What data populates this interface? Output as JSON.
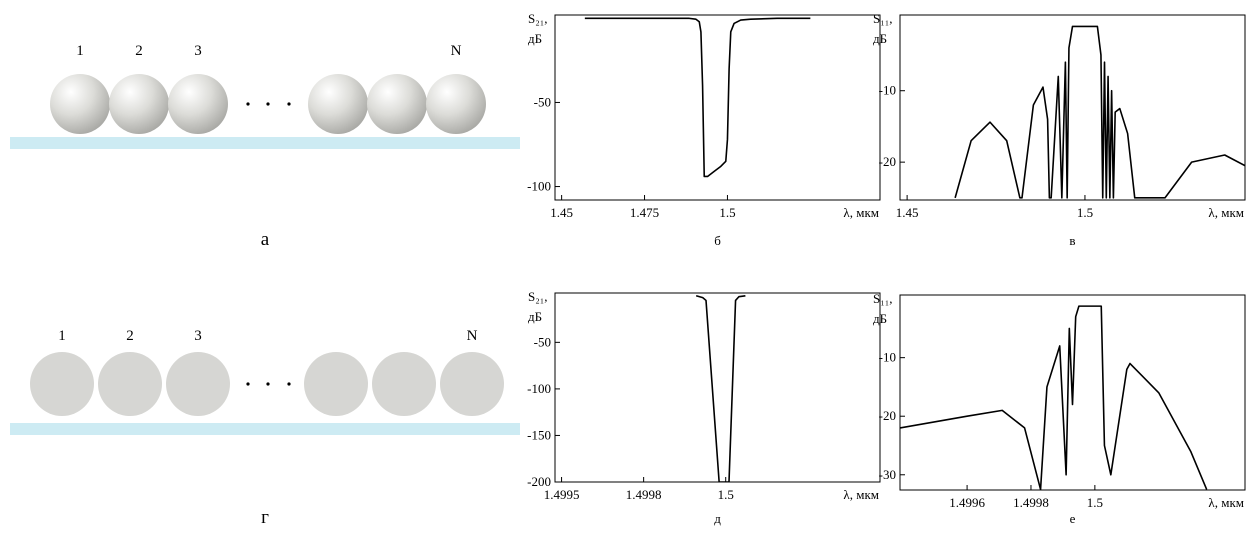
{
  "diagrams": [
    {
      "labels": [
        "1",
        "2",
        "3",
        "N"
      ],
      "caption": "а"
    },
    {
      "labels": [
        "1",
        "2",
        "3",
        "N"
      ],
      "caption": "г"
    }
  ],
  "chart_data": [
    {
      "type": "line",
      "caption": "б",
      "y_label": "S₂₁,",
      "y_unit": "дБ",
      "x_label": "λ, мкм",
      "x": [
        1.457,
        1.4885,
        1.4905,
        1.4915,
        1.492,
        1.4925,
        1.493,
        1.494,
        1.496,
        1.498,
        1.4995,
        1.5,
        1.5005,
        1.501,
        1.502,
        1.504,
        1.507,
        1.515,
        1.525
      ],
      "series": [
        {
          "color": "#000000",
          "values": [
            0,
            0,
            -0.5,
            -2,
            -8,
            -40,
            -94,
            -94,
            -91,
            -88,
            -85,
            -72,
            -30,
            -8,
            -3,
            -1,
            -0.5,
            0,
            0
          ]
        }
      ],
      "xlim": [
        1.448,
        1.546
      ],
      "ylim": [
        -108,
        2
      ],
      "xticks": [
        1.45,
        1.475,
        1.5
      ],
      "yticks": [
        -50,
        -100
      ]
    },
    {
      "type": "line",
      "caption": "в",
      "y_label": "S₁₁,",
      "y_unit": "дБ",
      "x_label": "λ, мкм",
      "x": [
        1.4635,
        1.468,
        1.4733,
        1.478,
        1.4817,
        1.4823,
        1.4855,
        1.4882,
        1.4895,
        1.49,
        1.4905,
        1.4925,
        1.4935,
        1.4945,
        1.495,
        1.4955,
        1.4965,
        1.5035,
        1.5045,
        1.505,
        1.5055,
        1.506,
        1.5065,
        1.507,
        1.5075,
        1.508,
        1.5085,
        1.5098,
        1.512,
        1.514,
        1.5225,
        1.53,
        1.5393,
        1.545
      ],
      "series": [
        {
          "color": "#000000",
          "values": [
            -25,
            -17,
            -14.4,
            -17,
            -25,
            -25,
            -12,
            -9.5,
            -14,
            -25,
            -25,
            -8,
            -25,
            -6,
            -25,
            -4,
            -1,
            -1,
            -5,
            -25,
            -6,
            -25,
            -8,
            -25,
            -10,
            -25,
            -13,
            -12.5,
            -16,
            -25,
            -25,
            -20,
            -19,
            -20.5
          ]
        }
      ],
      "xlim": [
        1.448,
        1.545
      ],
      "ylim": [
        -25.3,
        0.6
      ],
      "xticks": [
        1.45,
        1.5
      ],
      "yticks": [
        -10,
        -20
      ]
    },
    {
      "type": "line",
      "caption": "д",
      "y_label": "S₂₁,",
      "y_unit": "дБ",
      "x_label": "λ, мкм",
      "x": [
        1.49991,
        1.49993,
        1.49994,
        1.49998,
        1.50001,
        1.50003,
        1.50004,
        1.50006
      ],
      "series": [
        {
          "color": "#000000",
          "values": [
            0,
            -2,
            -5,
            -200,
            -200,
            -5,
            -1,
            0
          ]
        }
      ],
      "xlim": [
        1.49948,
        1.50047
      ],
      "ylim": [
        -200,
        3
      ],
      "xticks": [
        1.4995,
        {
          "value": 1.49975,
          "label": "1.4998"
        },
        1.5
      ],
      "yticks": [
        -50,
        -100,
        -150,
        -200
      ]
    },
    {
      "type": "line",
      "caption": "е",
      "y_label": "S₁₁,",
      "y_unit": "дБ",
      "x_label": "λ, мкм",
      "x": [
        1.49939,
        1.4996,
        1.49971,
        1.49978,
        1.49983,
        1.49985,
        1.49989,
        1.49991,
        1.49992,
        1.49993,
        1.49994,
        1.49995,
        1.50002,
        1.50003,
        1.50005,
        1.5001,
        1.50011,
        1.5002,
        1.5003,
        1.50035
      ],
      "series": [
        {
          "color": "#000000",
          "values": [
            -22,
            -20,
            -19,
            -22,
            -32.5,
            -15,
            -8,
            -30,
            -5,
            -18,
            -3,
            -1.2,
            -1.2,
            -25,
            -30,
            -12,
            -11,
            -16,
            -26,
            -32.5
          ]
        }
      ],
      "xlim": [
        1.49939,
        1.50047
      ],
      "ylim": [
        -32.6,
        0.7
      ],
      "xticks": [
        1.4996,
        1.4998,
        1.5
      ],
      "yticks": [
        -10,
        -20,
        -30
      ]
    }
  ]
}
